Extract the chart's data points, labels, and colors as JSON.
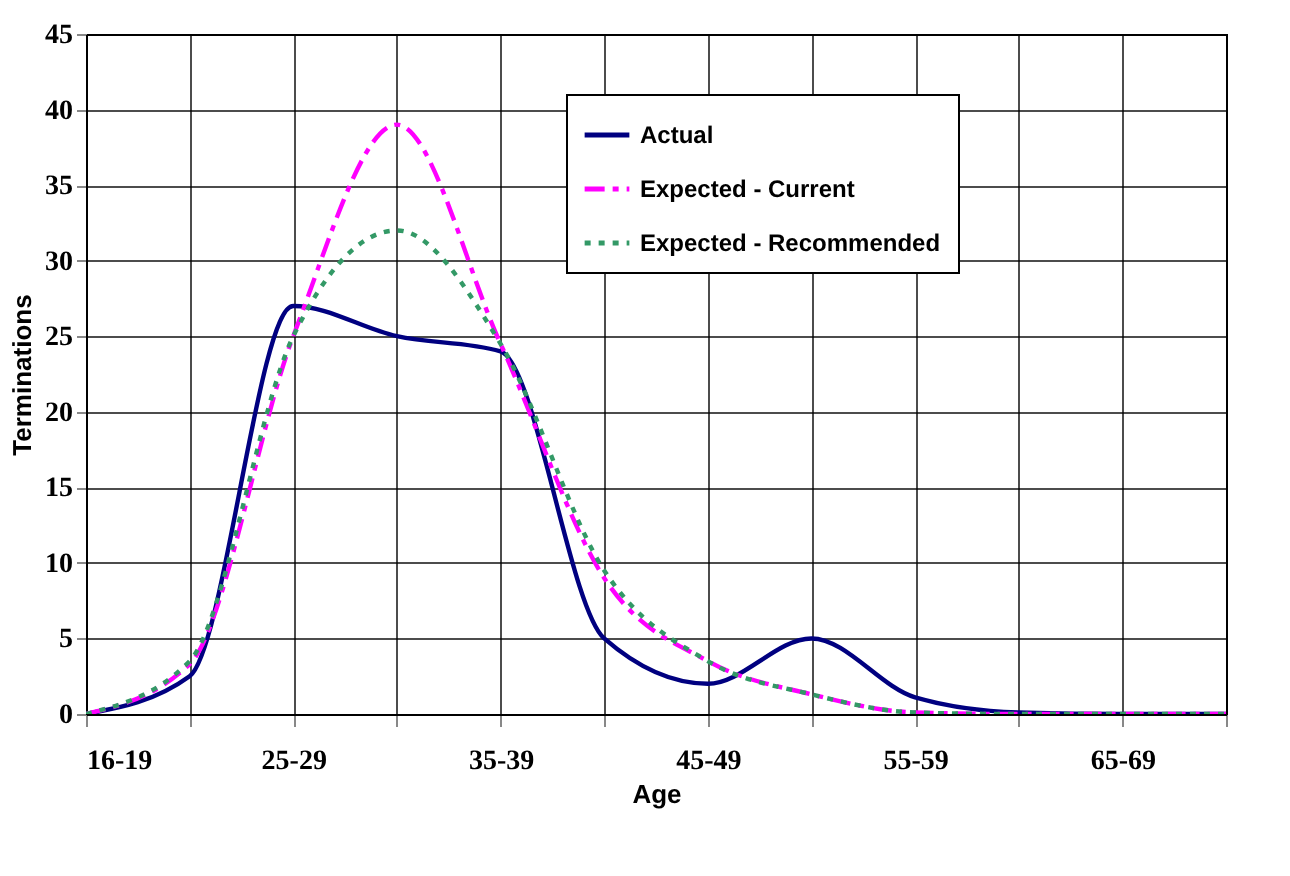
{
  "chart_data": {
    "type": "line",
    "xlabel": "Age",
    "ylabel": "Terminations",
    "categories": [
      "16-19",
      null,
      "25-29",
      null,
      "35-39",
      null,
      "45-49",
      null,
      "55-59",
      null,
      "65-69",
      null
    ],
    "series": [
      {
        "name": "Actual",
        "color": "#000080",
        "line_style": "solid",
        "values": [
          0,
          2.5,
          27,
          25,
          24,
          5,
          2,
          5,
          1.1,
          0.1,
          0,
          0
        ]
      },
      {
        "name": "Expected - Current",
        "color": "#ff00ff",
        "line_style": "dashed",
        "values": [
          0,
          3.3,
          25,
          39,
          24.5,
          9,
          3.5,
          1.3,
          0.1,
          0,
          0,
          0
        ]
      },
      {
        "name": "Expected - Recommended",
        "color": "#339966",
        "line_style": "dotted",
        "values": [
          0,
          3.5,
          25,
          32,
          24.5,
          9.5,
          3.5,
          1.3,
          0.1,
          0,
          0,
          0
        ]
      }
    ],
    "ylim": [
      0,
      45
    ],
    "yticks": [
      0,
      5,
      10,
      15,
      20,
      25,
      30,
      35,
      40,
      45
    ],
    "grid": true,
    "legend": "top right",
    "marker": "none"
  }
}
